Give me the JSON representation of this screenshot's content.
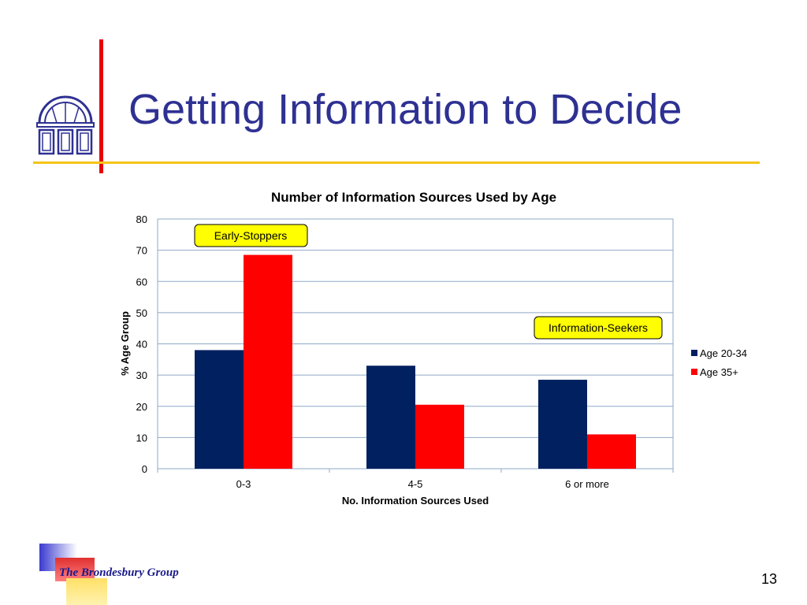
{
  "slide": {
    "title": "Getting Information to Decide",
    "footer": "The Brondesbury Group",
    "page_number": "13"
  },
  "colors": {
    "title": "#2e3192",
    "accent_bar": "#e8000c",
    "divider": "#f5c518",
    "series_1": "#002060",
    "series_2": "#ff0000",
    "callout_fill": "#ffff00"
  },
  "chart_data": {
    "type": "bar",
    "title": "Number of Information Sources Used by Age",
    "xlabel": "No. Information Sources Used",
    "ylabel": "% Age Group",
    "categories": [
      "0-3",
      "4-5",
      "6 or more"
    ],
    "ylim": [
      0,
      80
    ],
    "yticks": [
      0,
      10,
      20,
      30,
      40,
      50,
      60,
      70,
      80
    ],
    "grid": true,
    "legend": "right",
    "series": [
      {
        "name": "Age 20-34",
        "values": [
          38,
          33,
          28.5
        ]
      },
      {
        "name": "Age 35+",
        "values": [
          68.5,
          20.5,
          11
        ]
      }
    ],
    "annotations": [
      {
        "text": "Early-Stoppers"
      },
      {
        "text": "Information-Seekers"
      }
    ]
  }
}
